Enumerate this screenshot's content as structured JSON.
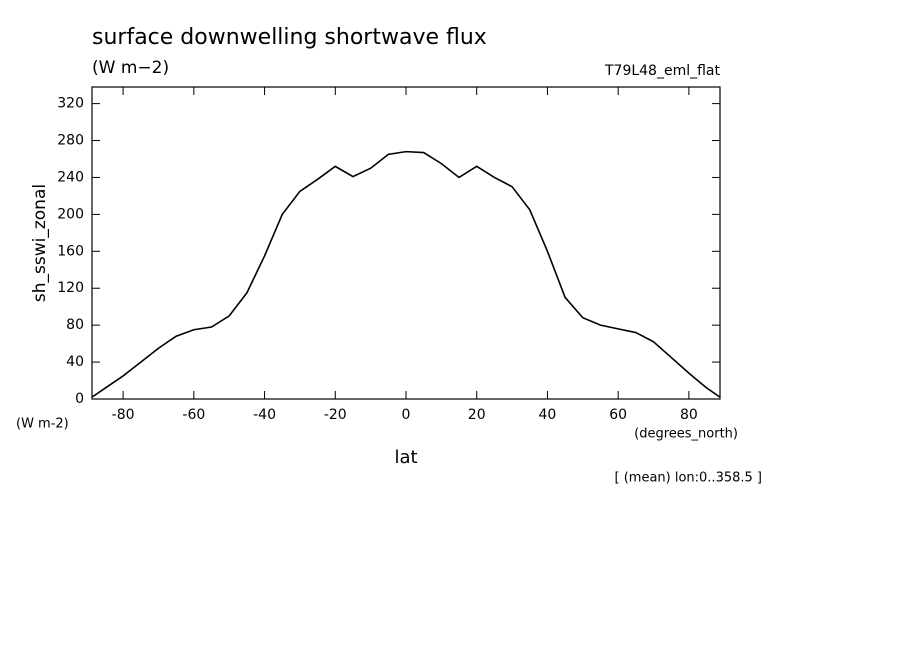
{
  "chart_data": {
    "type": "line",
    "title": "surface downwelling shortwave flux",
    "subtitle": "(W m−2)",
    "annotation": "T79L48_eml_flat",
    "y_label": "sh_sswi_zonal",
    "y_units": "(W m-2)",
    "x_units": "(degrees_north)",
    "x_label": "lat",
    "footnote": "[ (mean) lon:0..358.5 ]",
    "x": [
      -88.8,
      -85,
      -80,
      -75,
      -70,
      -65,
      -60,
      -55,
      -50,
      -45,
      -40,
      -35,
      -30,
      -25,
      -20,
      -15,
      -10,
      -5,
      0,
      5,
      10,
      15,
      20,
      25,
      30,
      35,
      40,
      45,
      50,
      55,
      60,
      65,
      70,
      75,
      80,
      85,
      88.8
    ],
    "series": [
      {
        "name": "sh_sswi_zonal",
        "color": "#000000",
        "values": [
          2,
          12,
          25,
          40,
          55,
          68,
          75,
          78,
          90,
          115,
          155,
          200,
          225,
          238,
          252,
          241,
          250,
          265,
          268,
          267,
          255,
          240,
          252,
          240,
          230,
          205,
          160,
          110,
          88,
          80,
          76,
          72,
          62,
          45,
          28,
          12,
          2
        ]
      }
    ],
    "xlim": [
      -88.8,
      88.8
    ],
    "ylim": [
      0,
      338
    ],
    "xticks": [
      -80,
      -60,
      -40,
      -20,
      0,
      20,
      40,
      60,
      80
    ],
    "yticks": [
      0,
      40,
      80,
      120,
      160,
      200,
      240,
      280,
      320
    ]
  }
}
